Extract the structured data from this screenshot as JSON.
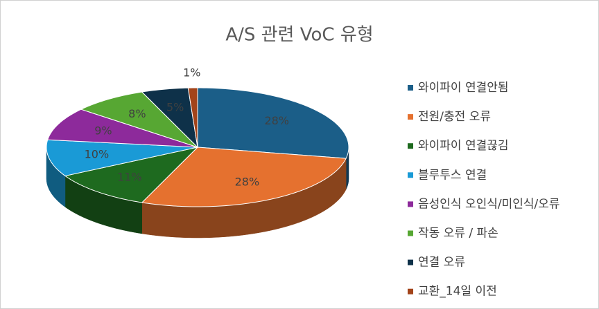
{
  "chart_data": {
    "type": "pie",
    "title": "A/S 관련 VoC 유형",
    "categories": [
      "와이파이 연결안됨",
      "전원/충전 오류",
      "와이파이 연결끊김",
      "블루투스 연결",
      "음성인식 오인식/미인식/오류",
      "작동 오류 / 파손",
      "연결 오류",
      "교환_14일 이전"
    ],
    "values": [
      28,
      28,
      11,
      10,
      9,
      8,
      5,
      1
    ],
    "value_labels": [
      "28%",
      "28%",
      "11%",
      "10%",
      "9%",
      "8%",
      "5%",
      "1%"
    ],
    "colors": [
      "#1b5e88",
      "#e5712f",
      "#1e6a1f",
      "#1a9ad6",
      "#8d2a9b",
      "#57a733",
      "#0e3149",
      "#a3441a"
    ],
    "legend": "right"
  }
}
